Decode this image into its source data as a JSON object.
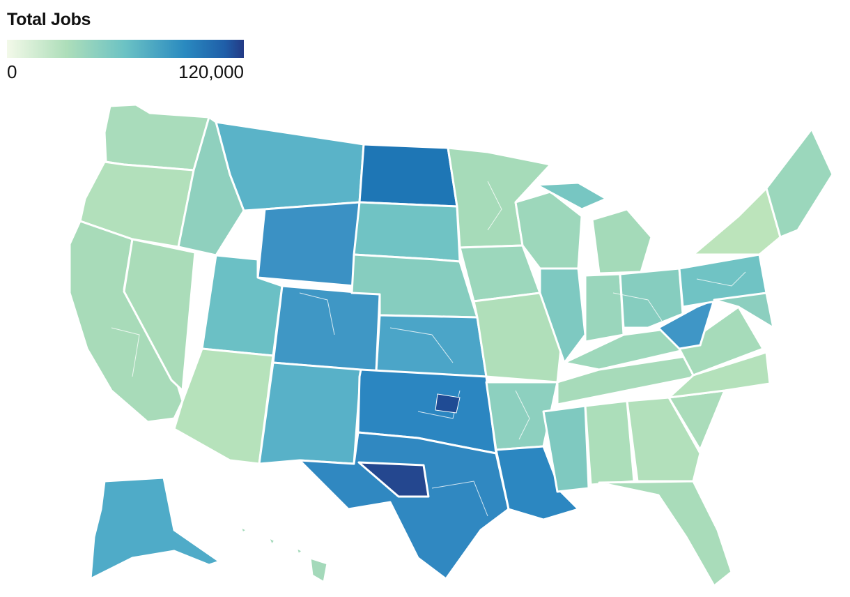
{
  "legend": {
    "title": "Total Jobs",
    "min_label": "0",
    "max_label": "120,000",
    "min_value": 0,
    "max_value": 120000,
    "color_stops": [
      "#f3f9e9",
      "#aedeba",
      "#6bc2c4",
      "#2a8ac0",
      "#1f4b97",
      "#233a85"
    ]
  },
  "colors": {
    "border": "#ffffff",
    "background": "#ffffff"
  },
  "chart_data": {
    "type": "choropleth",
    "metric": "Total Jobs",
    "scale": [
      0,
      120000
    ],
    "regions_shading": [
      {
        "region": "North Dakota",
        "value": 95000
      },
      {
        "region": "Wyoming",
        "value": 75000
      },
      {
        "region": "Montana",
        "value": 50000
      },
      {
        "region": "Colorado",
        "value": 60000
      },
      {
        "region": "New Mexico",
        "value": 50000
      },
      {
        "region": "Oklahoma",
        "value": 78000
      },
      {
        "region": "Texas",
        "value": 85000
      },
      {
        "region": "Louisiana",
        "value": 80000
      },
      {
        "region": "Alaska",
        "value": 50000
      },
      {
        "region": "West Virginia",
        "value": 65000
      },
      {
        "region": "California",
        "value": 25000
      },
      {
        "region": "Florida",
        "value": 25000
      }
    ]
  }
}
